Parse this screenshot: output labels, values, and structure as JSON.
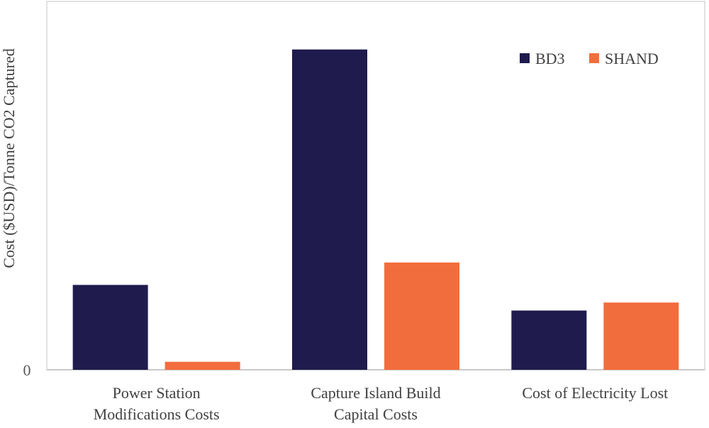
{
  "chart_data": {
    "type": "bar",
    "title": "",
    "xlabel": "",
    "ylabel": "Cost ($USD)/Tonne CO2 Captured",
    "categories": [
      [
        "Power Station",
        "Modifications Costs"
      ],
      [
        "Capture Island Build",
        "Capital Costs"
      ],
      [
        "Cost of Electricity Lost"
      ]
    ],
    "series": [
      {
        "name": "BD3",
        "color": "#1f1b4d",
        "values": [
          26.5,
          100,
          18.5
        ]
      },
      {
        "name": "SHAND",
        "color": "#f26d3d",
        "values": [
          2.5,
          33.5,
          21
        ]
      }
    ],
    "ylim": [
      0,
      115
    ],
    "y_ticks": [
      "0"
    ],
    "legend_position": "top-right",
    "grid": false,
    "frame_color": "#d9d9d9"
  }
}
